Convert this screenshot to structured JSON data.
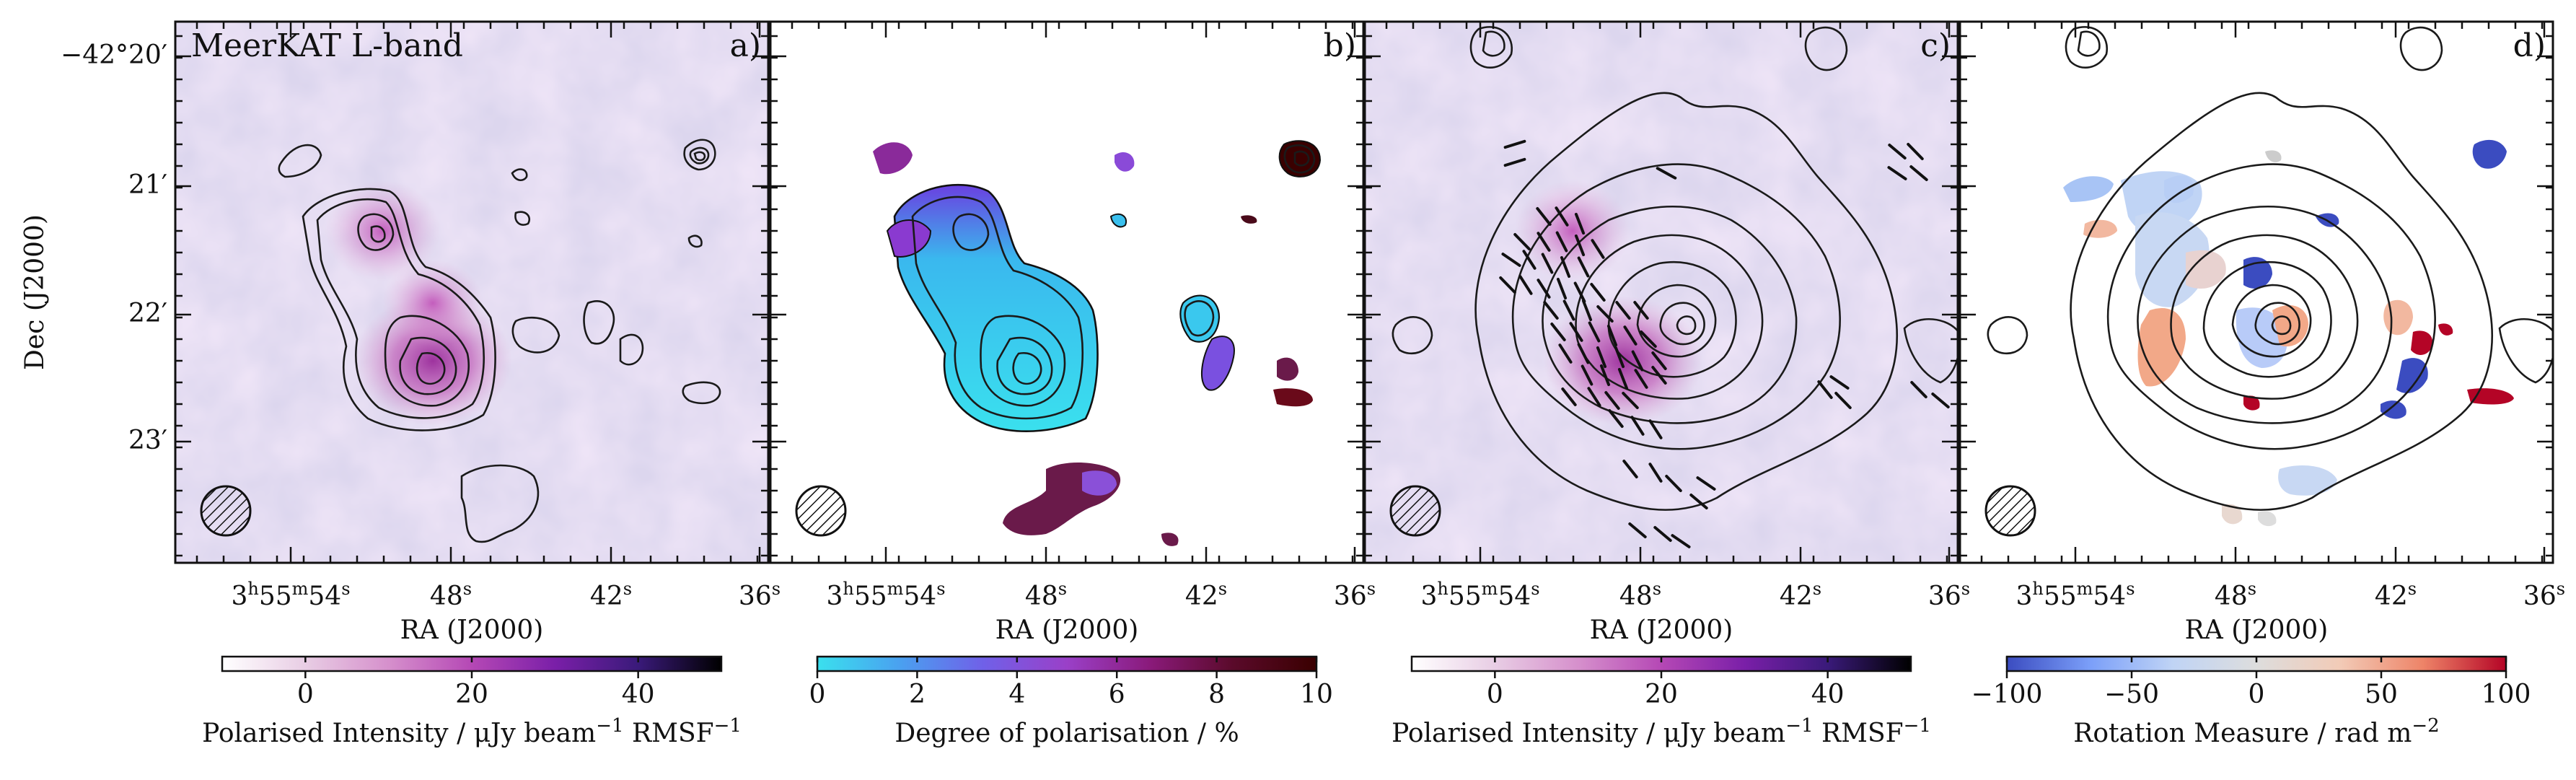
{
  "figure": {
    "ylabel": "Dec (J2000)",
    "xlabel": "RA (J2000)",
    "dec_ticks": [
      "−42°20′",
      "21′",
      "22′",
      "23′"
    ],
    "ra_ticks": [
      {
        "h": "3",
        "m": "55",
        "s": "54"
      },
      {
        "s": "48"
      },
      {
        "s": "42"
      },
      {
        "s": "36"
      }
    ]
  },
  "panels": [
    {
      "id": "a",
      "label": "a)",
      "title": "MeerKAT L-band",
      "background": "polarised-intensity",
      "colorbar": {
        "label_pre": "Polarised Intensity / μJy beam",
        "label_sup1": "−1",
        "label_mid": " RMSF",
        "label_sup2": "−1",
        "ticks": [
          "0",
          "20",
          "40"
        ],
        "range": [
          -10,
          50
        ],
        "tick_values": [
          0,
          20,
          40
        ],
        "colors": [
          "#ffffff",
          "#e8cde4",
          "#d690cc",
          "#b548b5",
          "#7a1fa8",
          "#3a1a7a",
          "#000000"
        ]
      }
    },
    {
      "id": "b",
      "label": "b)",
      "title": "",
      "background": "degree-of-polarisation",
      "colorbar": {
        "label_pre": "Degree of polarisation / %",
        "ticks": [
          "0",
          "2",
          "4",
          "6",
          "8",
          "10"
        ],
        "range": [
          0,
          10
        ],
        "tick_values": [
          0,
          2,
          4,
          6,
          8,
          10
        ],
        "colors": [
          "#3ae0ee",
          "#4aa0f0",
          "#7060e8",
          "#9a40c8",
          "#8a1a7a",
          "#5a0a2a",
          "#3a0000"
        ]
      }
    },
    {
      "id": "c",
      "label": "c)",
      "title": "",
      "background": "polarised-intensity",
      "colorbar": {
        "label_pre": "Polarised Intensity / μJy beam",
        "label_sup1": "−1",
        "label_mid": " RMSF",
        "label_sup2": "−1",
        "ticks": [
          "0",
          "20",
          "40"
        ],
        "range": [
          -10,
          50
        ],
        "tick_values": [
          0,
          20,
          40
        ],
        "colors": [
          "#ffffff",
          "#e8cde4",
          "#d690cc",
          "#b548b5",
          "#7a1fa8",
          "#3a1a7a",
          "#000000"
        ]
      }
    },
    {
      "id": "d",
      "label": "d)",
      "title": "",
      "background": "rotation-measure",
      "colorbar": {
        "label_pre": "Rotation Measure / rad m",
        "label_sup1": "−2",
        "ticks": [
          "−100",
          "−50",
          "0",
          "50",
          "100"
        ],
        "range": [
          -100,
          100
        ],
        "tick_values": [
          -100,
          -50,
          0,
          50,
          100
        ],
        "colors": [
          "#3b4cc0",
          "#7b9ff9",
          "#c0d4f5",
          "#dddddd",
          "#f2cbb7",
          "#ee8468",
          "#b40426"
        ]
      }
    }
  ],
  "chart_data": [
    {
      "type": "heatmap",
      "panel": "a",
      "title": "MeerKAT L-band",
      "xlabel": "RA (J2000)",
      "ylabel": "Dec (J2000)",
      "quantity": "polarised intensity",
      "colorbar_range": [
        -10,
        50
      ],
      "contours": true
    },
    {
      "type": "heatmap",
      "panel": "b",
      "xlabel": "RA (J2000)",
      "quantity": "degree of polarisation",
      "colorbar_range": [
        0,
        10
      ],
      "contours": true
    },
    {
      "type": "heatmap",
      "panel": "c",
      "xlabel": "RA (J2000)",
      "quantity": "polarised intensity",
      "colorbar_range": [
        -10,
        50
      ],
      "contours": true,
      "polarisation_vectors": true
    },
    {
      "type": "heatmap",
      "panel": "d",
      "xlabel": "RA (J2000)",
      "quantity": "rotation measure",
      "colorbar_range": [
        -100,
        100
      ],
      "contours": true
    }
  ]
}
